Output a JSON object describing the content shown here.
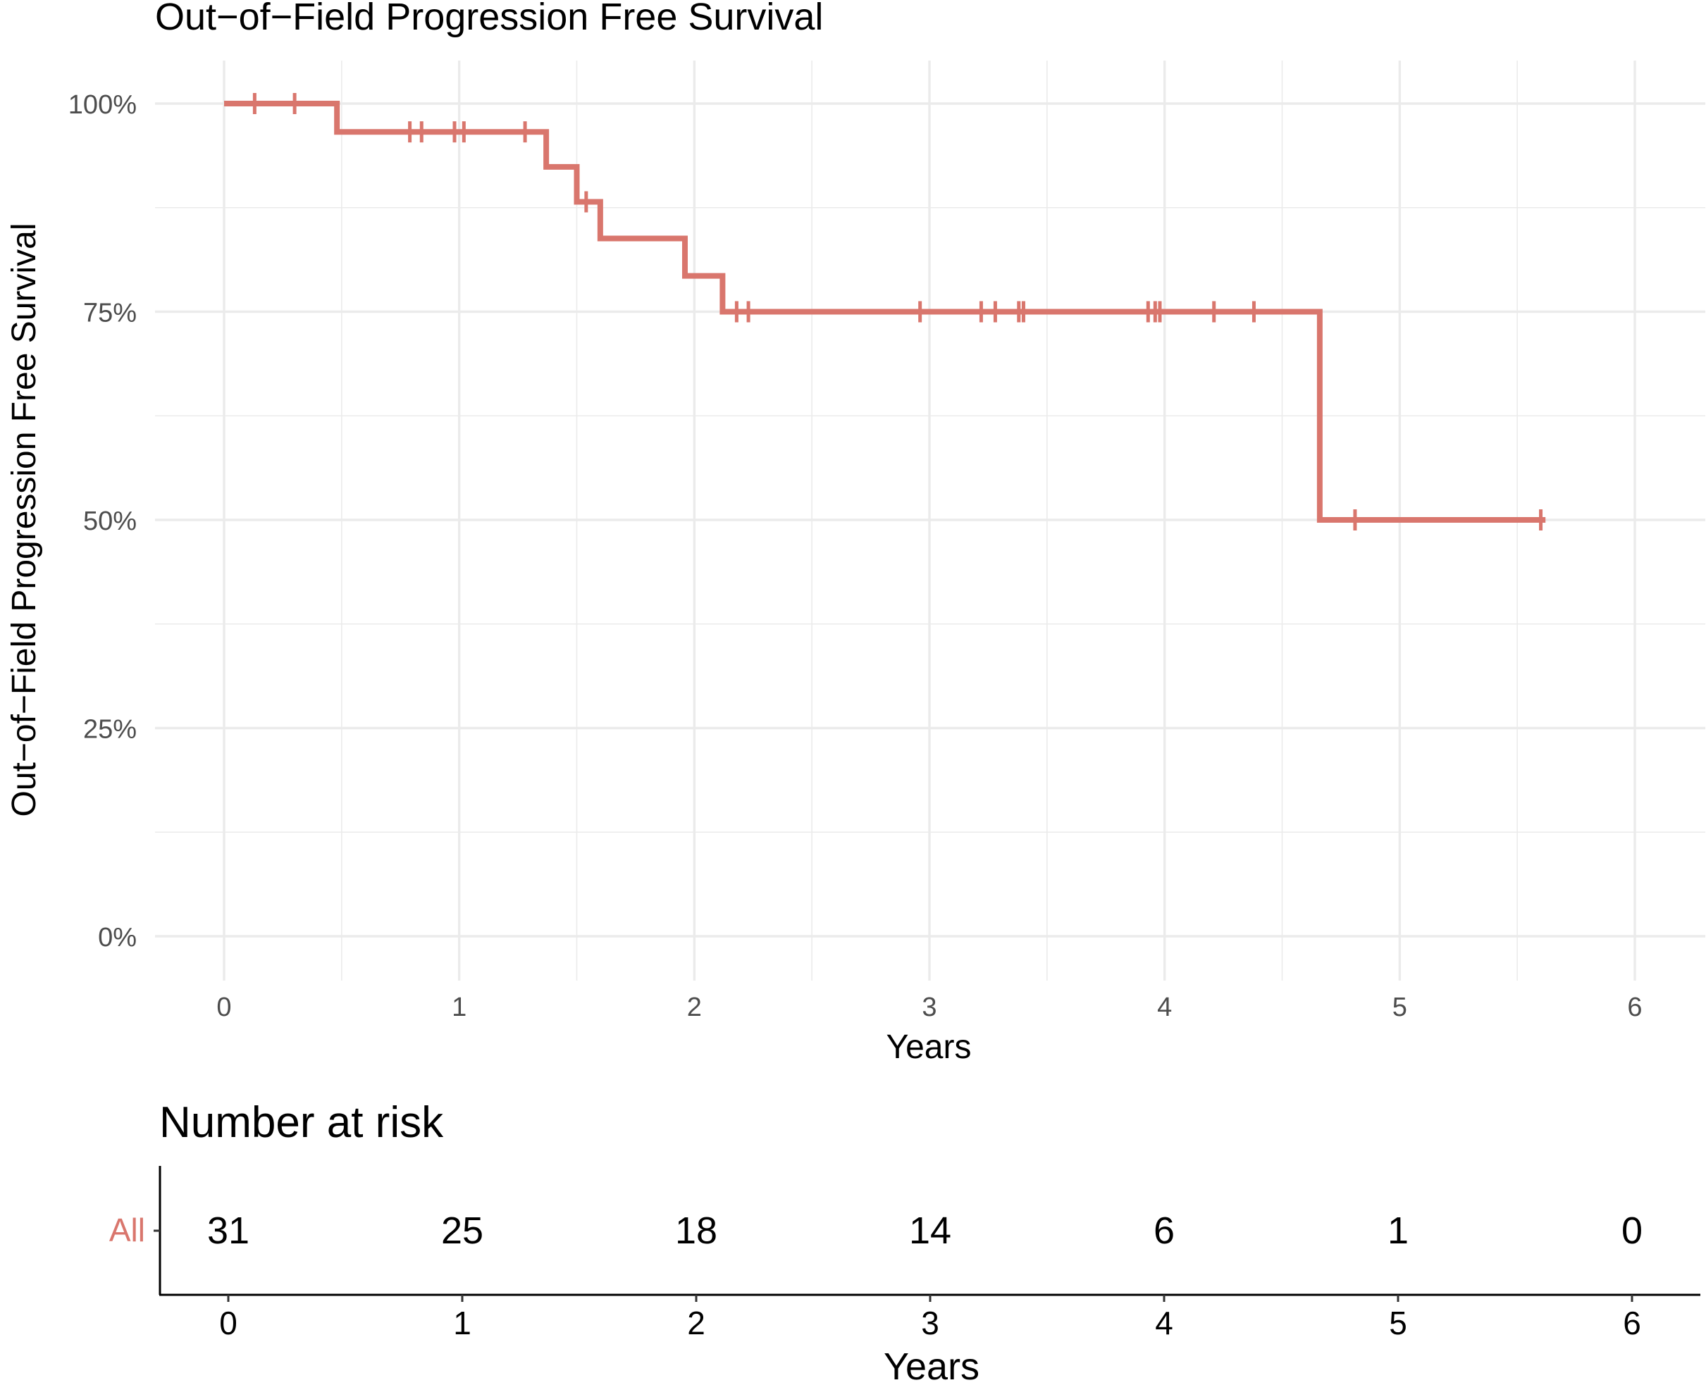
{
  "colors": {
    "strata": "#d9766d",
    "grid": "#ebebeb",
    "axis_text": "#4d4d4d",
    "text": "#000000"
  },
  "chart_data": [
    {
      "type": "line",
      "subtype": "kaplan-meier-step",
      "title": "Out−of−Field Progression Free Survival",
      "xlabel": "Years",
      "ylabel": "Out−of−Field Progression Free Survival",
      "xlim": [
        0,
        6
      ],
      "ylim": [
        0,
        1
      ],
      "x_ticks": [
        0,
        1,
        2,
        3,
        4,
        5,
        6
      ],
      "x_tick_labels": [
        "0",
        "1",
        "2",
        "3",
        "4",
        "5",
        "6"
      ],
      "y_ticks": [
        0,
        0.25,
        0.5,
        0.75,
        1.0
      ],
      "y_tick_labels": [
        "0%",
        "25%",
        "50%",
        "75%",
        "100%"
      ],
      "grid": true,
      "series": [
        {
          "name": "All",
          "steps": [
            {
              "x": 0,
              "y": 1.0
            },
            {
              "x": 0.48,
              "y": 0.966
            },
            {
              "x": 1.37,
              "y": 0.924
            },
            {
              "x": 1.5,
              "y": 0.882
            },
            {
              "x": 1.6,
              "y": 0.838
            },
            {
              "x": 1.96,
              "y": 0.793
            },
            {
              "x": 2.12,
              "y": 0.75
            },
            {
              "x": 4.66,
              "y": 0.5
            }
          ],
          "end_x": 5.62,
          "censored_x": [
            0.13,
            0.3,
            0.79,
            0.84,
            0.98,
            1.02,
            1.28,
            1.54,
            2.18,
            2.23,
            2.96,
            3.22,
            3.28,
            3.38,
            3.4,
            3.93,
            3.96,
            3.98,
            4.21,
            4.38,
            4.81,
            5.6
          ]
        }
      ]
    },
    {
      "type": "table",
      "title": "Number at risk",
      "xlabel": "Years",
      "x_ticks": [
        0,
        1,
        2,
        3,
        4,
        5,
        6
      ],
      "x_tick_labels": [
        "0",
        "1",
        "2",
        "3",
        "4",
        "5",
        "6"
      ],
      "rows": [
        {
          "label": "All",
          "values": [
            "31",
            "25",
            "18",
            "14",
            "6",
            "1",
            "0"
          ]
        }
      ]
    }
  ]
}
